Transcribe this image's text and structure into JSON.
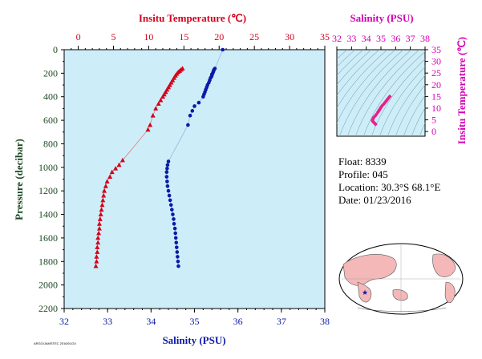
{
  "colors": {
    "temperature": "#d4001c",
    "salinity": "#0a1aa8",
    "inset": "#d400b4",
    "pressure_axis": "#1d4a24",
    "plot_bg": "#cdeef8",
    "land": "#f4b8b8"
  },
  "chart_data": [
    {
      "type": "scatter",
      "title": "",
      "ylabel": "Pressure (decibar)",
      "ylim": [
        2200,
        0
      ],
      "y_ticks": [
        "0",
        "200",
        "400",
        "600",
        "800",
        "1000",
        "1200",
        "1400",
        "1600",
        "1800",
        "2000",
        "2200"
      ],
      "top_axis": {
        "label": "Insitu Temperature (℃)",
        "range": [
          -2,
          35
        ],
        "ticks": [
          "0",
          "5",
          "10",
          "15",
          "20",
          "25",
          "30",
          "35"
        ]
      },
      "bottom_axis": {
        "label": "Salinity (PSU)",
        "range": [
          32,
          38
        ],
        "ticks": [
          "32",
          "33",
          "34",
          "35",
          "36",
          "37",
          "38"
        ]
      },
      "series": [
        {
          "marker": "triangle",
          "axis": "top",
          "points": [
            [
              14.8,
              160
            ],
            [
              14.6,
              170
            ],
            [
              14.4,
              180
            ],
            [
              14.2,
              190
            ],
            [
              14.0,
              205
            ],
            [
              13.8,
              220
            ],
            [
              13.6,
              240
            ],
            [
              13.4,
              260
            ],
            [
              13.2,
              280
            ],
            [
              13.0,
              300
            ],
            [
              12.8,
              320
            ],
            [
              12.6,
              340
            ],
            [
              12.4,
              360
            ],
            [
              12.2,
              380
            ],
            [
              12.0,
              400
            ],
            [
              11.7,
              430
            ],
            [
              11.4,
              460
            ],
            [
              11.0,
              500
            ],
            [
              10.6,
              560
            ],
            [
              10.2,
              640
            ],
            [
              9.9,
              680
            ],
            [
              6.3,
              940
            ],
            [
              5.8,
              980
            ],
            [
              5.3,
              1010
            ],
            [
              4.8,
              1040
            ],
            [
              4.5,
              1080
            ],
            [
              4.1,
              1120
            ],
            [
              3.9,
              1160
            ],
            [
              3.7,
              1200
            ],
            [
              3.6,
              1240
            ],
            [
              3.5,
              1280
            ],
            [
              3.4,
              1320
            ],
            [
              3.3,
              1360
            ],
            [
              3.2,
              1400
            ],
            [
              3.1,
              1440
            ],
            [
              3.0,
              1480
            ],
            [
              3.0,
              1520
            ],
            [
              2.9,
              1560
            ],
            [
              2.8,
              1600
            ],
            [
              2.8,
              1640
            ],
            [
              2.7,
              1680
            ],
            [
              2.7,
              1720
            ],
            [
              2.6,
              1760
            ],
            [
              2.6,
              1800
            ],
            [
              2.5,
              1840
            ]
          ]
        },
        {
          "marker": "circle",
          "axis": "bottom",
          "points": [
            [
              35.65,
              0
            ],
            [
              35.47,
              160
            ],
            [
              35.45,
              170
            ],
            [
              35.44,
              180
            ],
            [
              35.43,
              190
            ],
            [
              35.42,
              200
            ],
            [
              35.4,
              210
            ],
            [
              35.4,
              220
            ],
            [
              35.39,
              230
            ],
            [
              35.37,
              240
            ],
            [
              35.35,
              260
            ],
            [
              35.33,
              280
            ],
            [
              35.3,
              300
            ],
            [
              35.28,
              320
            ],
            [
              35.26,
              340
            ],
            [
              35.24,
              360
            ],
            [
              35.22,
              380
            ],
            [
              35.2,
              400
            ],
            [
              35.1,
              450
            ],
            [
              35.0,
              480
            ],
            [
              34.95,
              520
            ],
            [
              34.9,
              560
            ],
            [
              34.85,
              640
            ],
            [
              34.4,
              950
            ],
            [
              34.38,
              980
            ],
            [
              34.37,
              1010
            ],
            [
              34.36,
              1040
            ],
            [
              34.36,
              1080
            ],
            [
              34.37,
              1120
            ],
            [
              34.38,
              1160
            ],
            [
              34.4,
              1200
            ],
            [
              34.42,
              1240
            ],
            [
              34.44,
              1280
            ],
            [
              34.46,
              1320
            ],
            [
              34.48,
              1360
            ],
            [
              34.5,
              1400
            ],
            [
              34.52,
              1440
            ],
            [
              34.53,
              1480
            ],
            [
              34.55,
              1520
            ],
            [
              34.56,
              1560
            ],
            [
              34.57,
              1600
            ],
            [
              34.58,
              1640
            ],
            [
              34.59,
              1680
            ],
            [
              34.6,
              1720
            ],
            [
              34.61,
              1760
            ],
            [
              34.62,
              1800
            ],
            [
              34.63,
              1840
            ]
          ]
        }
      ]
    },
    {
      "type": "scatter",
      "title": "",
      "top_axis": {
        "label": "Salinity (PSU)",
        "range": [
          32,
          38
        ],
        "ticks": [
          "32",
          "33",
          "34",
          "35",
          "36",
          "37",
          "38"
        ]
      },
      "y_axis_right": {
        "label": "Insitu Temperature (℃)",
        "range": [
          -2,
          35
        ],
        "ticks": [
          "0",
          "5",
          "10",
          "15",
          "20",
          "25",
          "30",
          "35"
        ]
      },
      "series": [
        {
          "marker": "diamond",
          "points": [
            [
              35.6,
              15.0
            ],
            [
              35.55,
              14.6
            ],
            [
              35.5,
              14.2
            ],
            [
              35.45,
              13.8
            ],
            [
              35.4,
              13.4
            ],
            [
              35.35,
              13.0
            ],
            [
              35.3,
              12.6
            ],
            [
              35.25,
              12.2
            ],
            [
              35.2,
              11.8
            ],
            [
              35.12,
              11.3
            ],
            [
              35.05,
              10.8
            ],
            [
              35.0,
              10.3
            ],
            [
              34.95,
              9.8
            ],
            [
              34.9,
              9.3
            ],
            [
              34.85,
              8.8
            ],
            [
              34.8,
              8.3
            ],
            [
              34.7,
              7.4
            ],
            [
              34.6,
              6.6
            ],
            [
              34.5,
              6.0
            ],
            [
              34.45,
              5.3
            ],
            [
              34.42,
              4.8
            ],
            [
              34.45,
              4.3
            ],
            [
              34.5,
              4.0
            ],
            [
              34.55,
              3.7
            ],
            [
              34.6,
              3.4
            ],
            [
              34.63,
              3.1
            ]
          ]
        }
      ]
    }
  ],
  "info": {
    "float": "Float:  8339",
    "profile": "Profile:  045",
    "location": "Location:  30.3°S  68.1°E",
    "date": "Date:  01/23/2016"
  },
  "footer": "ARGO/JAMSTEC 2016/01/24"
}
